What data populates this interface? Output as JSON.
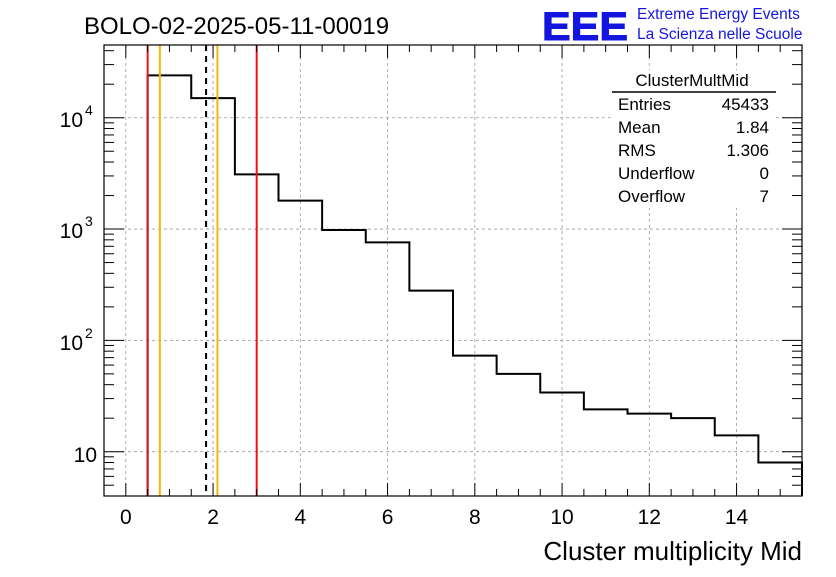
{
  "header": {
    "run_title": "BOLO-02-2025-05-11-00019",
    "logo_letters": "EEE",
    "brand_line1": "Extreme Energy Events",
    "brand_line2": "La Scienza nelle Scuole"
  },
  "stats": {
    "title": "ClusterMultMid",
    "rows": [
      {
        "label": "Entries",
        "value": "45433"
      },
      {
        "label": "Mean",
        "value": "1.84"
      },
      {
        "label": "RMS",
        "value": "1.306"
      },
      {
        "label": "Underflow",
        "value": "0"
      },
      {
        "label": "Overflow",
        "value": "7"
      }
    ]
  },
  "chart_data": {
    "type": "histogram",
    "title": "BOLO-02-2025-05-11-00019",
    "xlabel": "Cluster multiplicity Mid",
    "ylabel": "",
    "xlim": [
      -0.5,
      15.5
    ],
    "ylim": [
      4,
      45000
    ],
    "yscale": "log",
    "grid": true,
    "bin_edges": [
      0.5,
      1.5,
      2.5,
      3.5,
      4.5,
      5.5,
      6.5,
      7.5,
      8.5,
      9.5,
      10.5,
      11.5,
      12.5,
      13.5,
      14.5,
      15.5
    ],
    "counts": [
      24000,
      15000,
      3100,
      1800,
      980,
      760,
      280,
      73,
      50,
      34,
      24,
      22,
      20,
      14,
      8
    ],
    "x_ticks": [
      0,
      2,
      4,
      6,
      8,
      10,
      12,
      14
    ],
    "x_tick_labels": [
      "0",
      "2",
      "4",
      "6",
      "8",
      "10",
      "12",
      "14"
    ],
    "y_ticks": [
      10,
      100,
      1000,
      10000
    ],
    "y_tick_labels": {
      "ten": "10",
      "hundred_base": "10",
      "hundred_exp": "2",
      "thousand_base": "10",
      "thousand_exp": "3",
      "tenthousand_base": "10",
      "tenthousand_exp": "4"
    },
    "vertical_lines": [
      {
        "x": 0.5,
        "color": "#e8141c",
        "style": "solid"
      },
      {
        "x": 0.78,
        "color": "#f5b800",
        "style": "solid"
      },
      {
        "x": 1.84,
        "color": "#000000",
        "style": "dashed"
      },
      {
        "x": 2.1,
        "color": "#f5b800",
        "style": "solid"
      },
      {
        "x": 3.0,
        "color": "#e8141c",
        "style": "solid"
      }
    ],
    "colors": {
      "histogram": "#000000",
      "grid": "#9a9a9a",
      "logo": "#1515e0"
    }
  }
}
